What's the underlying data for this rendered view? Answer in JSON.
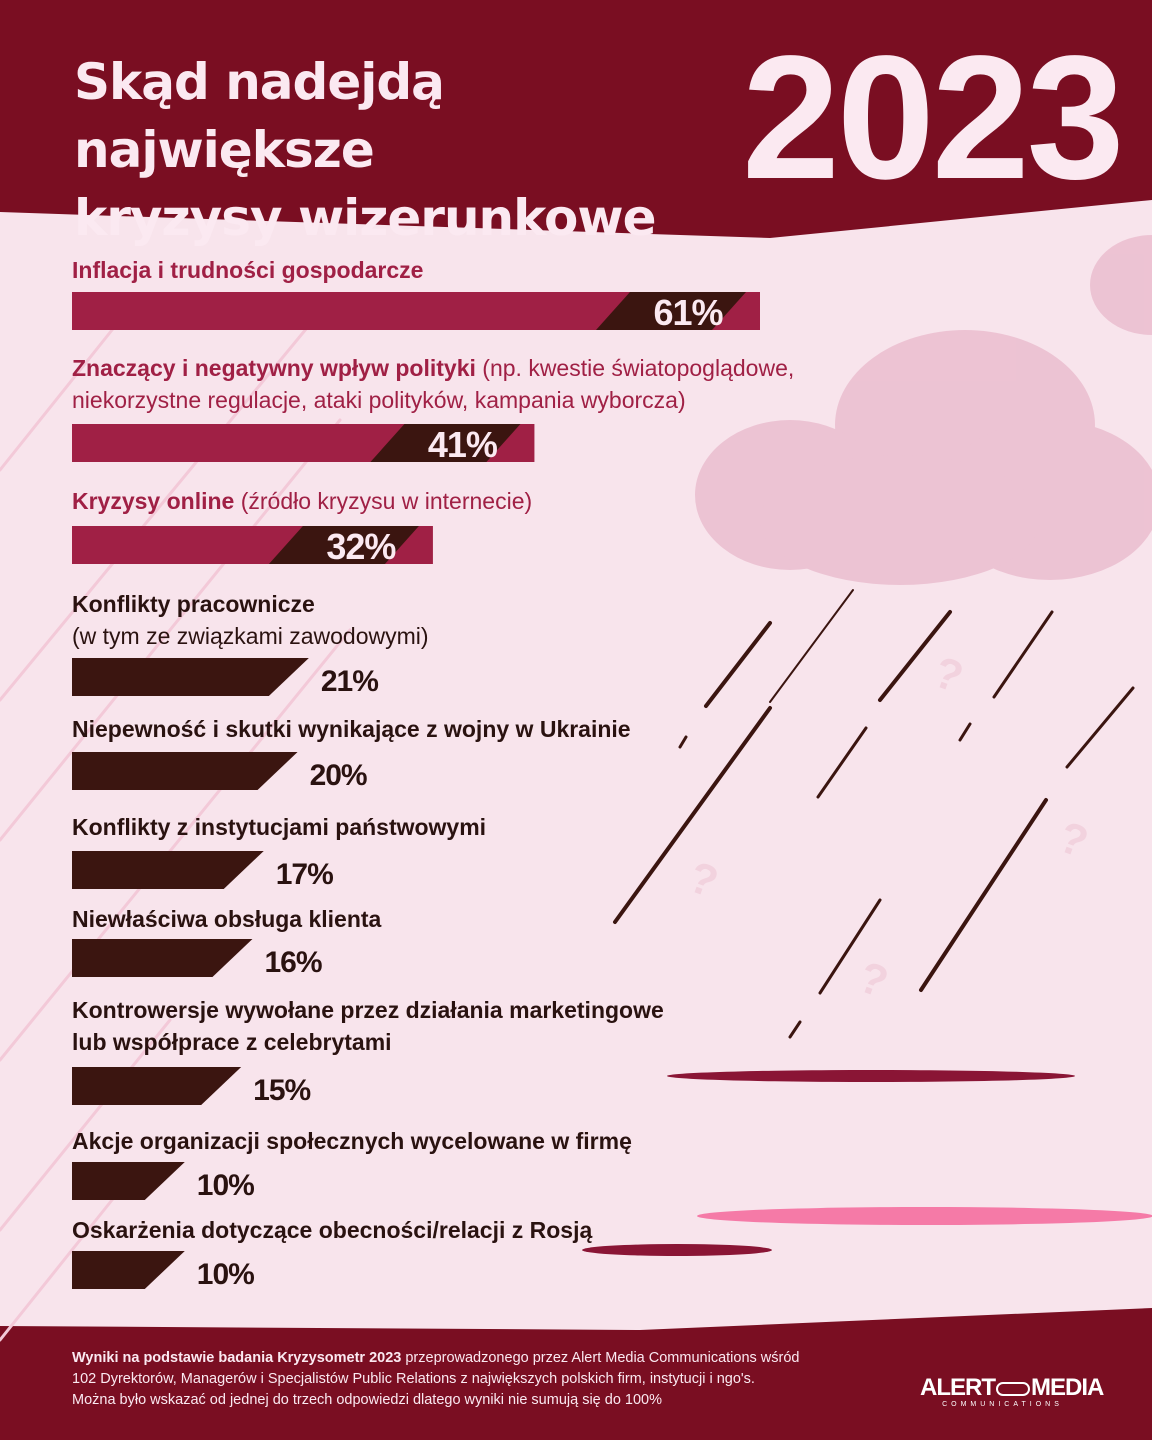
{
  "header": {
    "title_line1": "Skąd nadejdą największe",
    "title_line2": "kryzysy wizerunkowe",
    "year": "2023"
  },
  "colors": {
    "header_bg": "#7a0e22",
    "page_bg": "#f8e4ec",
    "highlight_bar": "#a02045",
    "dark_bar": "#3b1510",
    "highlight_text": "#a02045",
    "dark_text": "#2a1210",
    "cloud": "#e9b8cb",
    "puddle_pink": "#f57aa7"
  },
  "chart_data": {
    "type": "bar",
    "orientation": "horizontal",
    "unit": "%",
    "items": [
      {
        "label_bold": "Inflacja i trudności gospodarcze",
        "label_rest": "",
        "label_line2": "",
        "value": 61,
        "value_label": "61%",
        "highlight": true
      },
      {
        "label_bold": "Znaczący i negatywny wpływ polityki",
        "label_rest": " (np. kwestie światopoglądowe,",
        "label_line2": "niekorzystne regulacje, ataki polityków, kampania wyborcza)",
        "value": 41,
        "value_label": "41%",
        "highlight": true
      },
      {
        "label_bold": "Kryzysy online",
        "label_rest": " (źródło kryzysu w internecie)",
        "label_line2": "",
        "value": 32,
        "value_label": "32%",
        "highlight": true
      },
      {
        "label_bold": "Konflikty pracownicze",
        "label_rest": "",
        "label_line2": "(w tym ze związkami zawodowymi)",
        "value": 21,
        "value_label": "21%",
        "highlight": false
      },
      {
        "label_bold": "Niepewność i skutki wynikające z wojny w Ukrainie",
        "label_rest": "",
        "label_line2": "",
        "value": 20,
        "value_label": "20%",
        "highlight": false
      },
      {
        "label_bold": "Konflikty z instytucjami państwowymi",
        "label_rest": "",
        "label_line2": "",
        "value": 17,
        "value_label": "17%",
        "highlight": false
      },
      {
        "label_bold": "Niewłaściwa obsługa klienta",
        "label_rest": "",
        "label_line2": "",
        "value": 16,
        "value_label": "16%",
        "highlight": false
      },
      {
        "label_bold": "Kontrowersje wywołane przez działania marketingowe",
        "label_rest": "",
        "label_line2": "lub współprace z celebrytami",
        "value": 15,
        "value_label": "15%",
        "highlight": false
      },
      {
        "label_bold": "Akcje organizacji społecznych wycelowane w firmę",
        "label_rest": "",
        "label_line2": "",
        "value": 10,
        "value_label": "10%",
        "highlight": false
      },
      {
        "label_bold": "Oskarżenia dotyczące obecności/relacji z Rosją",
        "label_rest": "",
        "label_line2": "",
        "value": 10,
        "value_label": "10%",
        "highlight": false
      }
    ]
  },
  "footer": {
    "note_bold": "Wyniki na podstawie badania Kryzysometr 2023",
    "note_rest": " przeprowadzonego przez Alert Media Communications wśród",
    "note_line2": "102 Dyrektorów, Managerów i Specjalistów Public Relations z największych polskich firm, instytucji i ngo's.",
    "note_line3": "Można było wskazać od jednej do trzech odpowiedzi dlatego wyniki nie sumują się do 100%",
    "logo_left": "ALERT",
    "logo_right": "MEDIA",
    "logo_sub": "COMMUNICATIONS"
  }
}
